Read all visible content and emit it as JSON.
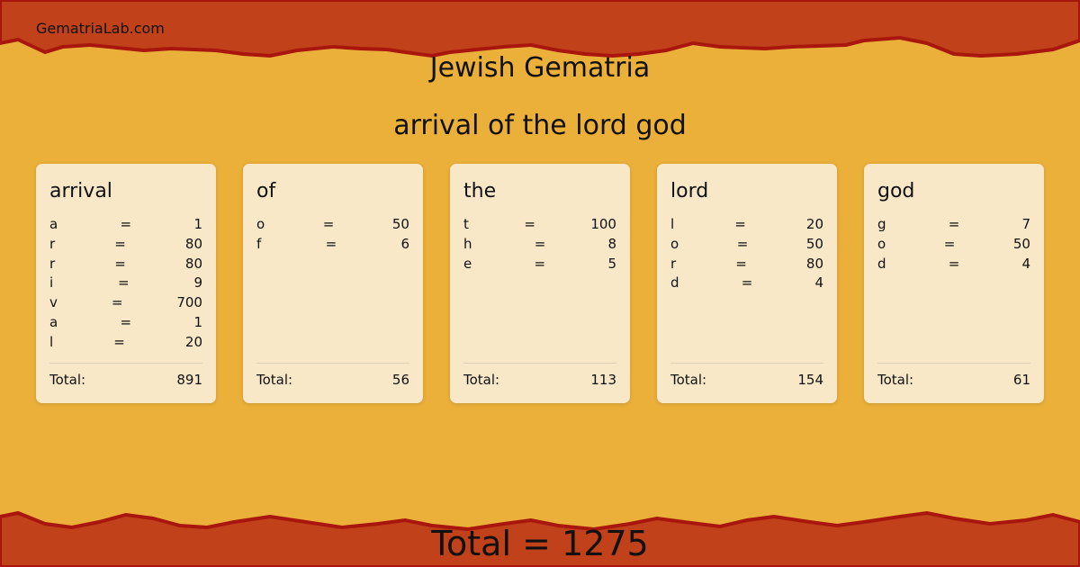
{
  "brand": "GematriaLab.com",
  "title": "Jewish Gematria",
  "phrase": "arrival of the lord god",
  "total_label": "Total:",
  "grand_total": "Total = 1275",
  "colors": {
    "band": "#c0411a",
    "band_edge": "#a8160e",
    "paper": "#ebb03a",
    "card": "#f8e8c8"
  },
  "words": [
    {
      "word": "arrival",
      "letters": [
        [
          "a",
          "1"
        ],
        [
          "r",
          "80"
        ],
        [
          "r",
          "80"
        ],
        [
          "i",
          "9"
        ],
        [
          "v",
          "700"
        ],
        [
          "a",
          "1"
        ],
        [
          "l",
          "20"
        ]
      ],
      "total": "891"
    },
    {
      "word": "of",
      "letters": [
        [
          "o",
          "50"
        ],
        [
          "f",
          "6"
        ]
      ],
      "total": "56"
    },
    {
      "word": "the",
      "letters": [
        [
          "t",
          "100"
        ],
        [
          "h",
          "8"
        ],
        [
          "e",
          "5"
        ]
      ],
      "total": "113"
    },
    {
      "word": "lord",
      "letters": [
        [
          "l",
          "20"
        ],
        [
          "o",
          "50"
        ],
        [
          "r",
          "80"
        ],
        [
          "d",
          "4"
        ]
      ],
      "total": "154"
    },
    {
      "word": "god",
      "letters": [
        [
          "g",
          "7"
        ],
        [
          "o",
          "50"
        ],
        [
          "d",
          "4"
        ]
      ],
      "total": "61"
    }
  ]
}
